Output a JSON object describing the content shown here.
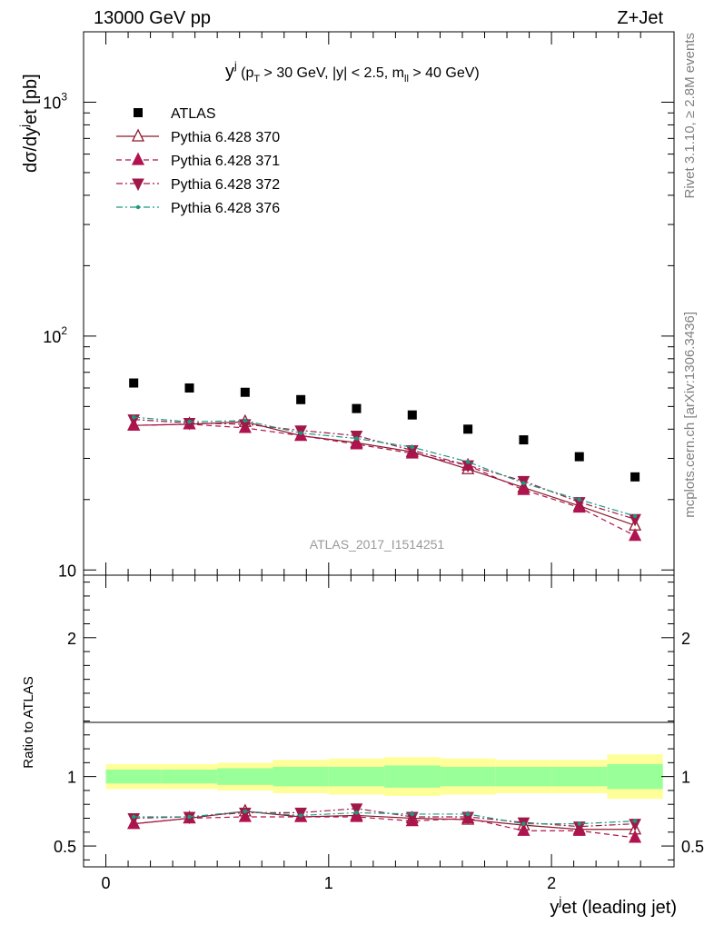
{
  "header": {
    "left": "13000 GeV pp",
    "right": "Z+Jet",
    "analysis_id": "ATLAS_2017_I1514251",
    "side_top": "Rivet 3.1.10, ≥ 2.8M events",
    "side_bottom": "mcplots.cern.ch [arXiv:1306.3436]"
  },
  "chart_data": [
    {
      "type": "scatter",
      "panel": "main",
      "title": "y^j (p_T > 30 GeV, |y| < 2.5, m_ll > 40 GeV)",
      "title_parts": {
        "a": "y",
        "b": "j",
        "c": " (p",
        "d": "T",
        "e": " > 30 GeV, |y| < 2.5, m",
        "f": "ll",
        "g": " > 40 GeV)"
      },
      "ylabel": "dσ/dy^jet [pb]",
      "ylabel_parts": {
        "a": "dσ/dy",
        "b": "j",
        "c": "et [pb]"
      },
      "yscale": "log",
      "xlim": [
        -0.1,
        2.55
      ],
      "ylim": [
        9.5,
        2000
      ],
      "yticks": [
        {
          "v": 10,
          "label": "10"
        },
        {
          "v": 100,
          "label": "10",
          "sup": "2"
        },
        {
          "v": 1000,
          "label": "10",
          "sup": "3"
        }
      ],
      "x": [
        0.125,
        0.375,
        0.625,
        0.875,
        1.125,
        1.375,
        1.625,
        1.875,
        2.125,
        2.375
      ],
      "legend_position": "top-left",
      "series": [
        {
          "name": "ATLAS",
          "color": "#000000",
          "marker": "square",
          "line": "none",
          "values": [
            63.0,
            60.0,
            57.5,
            53.5,
            49.0,
            46.0,
            40.0,
            36.0,
            30.5,
            25.0
          ]
        },
        {
          "name": "Pythia 6.428 370",
          "color": "#8b1a2b",
          "marker": "triangle-up-open",
          "line": "solid",
          "values": [
            41.5,
            42.0,
            43.0,
            37.5,
            35.0,
            32.0,
            27.0,
            22.5,
            18.8,
            15.5
          ]
        },
        {
          "name": "Pythia 6.428 371",
          "color": "#b0134f",
          "marker": "triangle-up",
          "line": "dashed",
          "values": [
            41.5,
            42.0,
            40.5,
            37.5,
            34.5,
            31.5,
            28.0,
            22.0,
            18.5,
            14.0
          ]
        },
        {
          "name": "Pythia 6.428 372",
          "color": "#a01848",
          "marker": "triangle-down",
          "line": "dashdot",
          "values": [
            44.0,
            42.5,
            42.0,
            39.5,
            37.5,
            32.5,
            28.0,
            24.0,
            19.5,
            16.5
          ]
        },
        {
          "name": "Pythia 6.428 376",
          "color": "#1a9a80",
          "marker": "dot",
          "line": "dashdot",
          "values": [
            45.0,
            43.0,
            43.5,
            38.5,
            36.5,
            33.5,
            29.0,
            23.5,
            20.0,
            17.0
          ]
        }
      ]
    },
    {
      "type": "scatter",
      "panel": "ratio",
      "ylabel": "Ratio to ATLAS",
      "xlabel": "y^jet (leading jet)",
      "xlabel_parts": {
        "a": "y",
        "b": "j",
        "c": "et (leading jet)"
      },
      "xlim": [
        -0.1,
        2.55
      ],
      "ylim": [
        0.35,
        2.45
      ],
      "xticks": [
        0,
        1,
        2
      ],
      "xtick_labels": [
        "0",
        "1",
        "2"
      ],
      "yticks": [
        0.5,
        1,
        2
      ],
      "ytick_labels": [
        "0.5",
        "1",
        "2"
      ],
      "bins": [
        0,
        0.25,
        0.5,
        0.75,
        1.0,
        1.25,
        1.5,
        1.75,
        2.0,
        2.25,
        2.5
      ],
      "band_stat": [
        [
          0.95,
          1.05
        ],
        [
          0.95,
          1.05
        ],
        [
          0.94,
          1.06
        ],
        [
          0.93,
          1.07
        ],
        [
          0.93,
          1.07
        ],
        [
          0.92,
          1.08
        ],
        [
          0.93,
          1.07
        ],
        [
          0.93,
          1.07
        ],
        [
          0.93,
          1.07
        ],
        [
          0.91,
          1.09
        ]
      ],
      "band_total": [
        [
          0.91,
          1.09
        ],
        [
          0.91,
          1.09
        ],
        [
          0.9,
          1.1
        ],
        [
          0.88,
          1.12
        ],
        [
          0.87,
          1.13
        ],
        [
          0.86,
          1.14
        ],
        [
          0.87,
          1.13
        ],
        [
          0.88,
          1.12
        ],
        [
          0.88,
          1.12
        ],
        [
          0.84,
          1.16
        ]
      ],
      "band_colors": {
        "total": "#ffff99",
        "stat": "#99ff99"
      },
      "x": [
        0.125,
        0.375,
        0.625,
        0.875,
        1.125,
        1.375,
        1.625,
        1.875,
        2.125,
        2.375
      ],
      "series": [
        {
          "name": "Pythia 6.428 370",
          "color": "#8b1a2b",
          "marker": "triangle-up-open",
          "line": "solid",
          "values": [
            0.66,
            0.7,
            0.75,
            0.71,
            0.72,
            0.7,
            0.69,
            0.65,
            0.62,
            0.62
          ]
        },
        {
          "name": "Pythia 6.428 371",
          "color": "#b0134f",
          "marker": "triangle-up",
          "line": "dashed",
          "values": [
            0.66,
            0.7,
            0.71,
            0.71,
            0.71,
            0.68,
            0.7,
            0.61,
            0.61,
            0.56
          ]
        },
        {
          "name": "Pythia 6.428 372",
          "color": "#a01848",
          "marker": "triangle-down",
          "line": "dashdot",
          "values": [
            0.7,
            0.71,
            0.74,
            0.74,
            0.77,
            0.71,
            0.71,
            0.67,
            0.64,
            0.66
          ]
        },
        {
          "name": "Pythia 6.428 376",
          "color": "#1a9a80",
          "marker": "dot",
          "line": "dashdot",
          "values": [
            0.71,
            0.71,
            0.75,
            0.72,
            0.74,
            0.73,
            0.73,
            0.66,
            0.66,
            0.68
          ]
        }
      ]
    }
  ]
}
